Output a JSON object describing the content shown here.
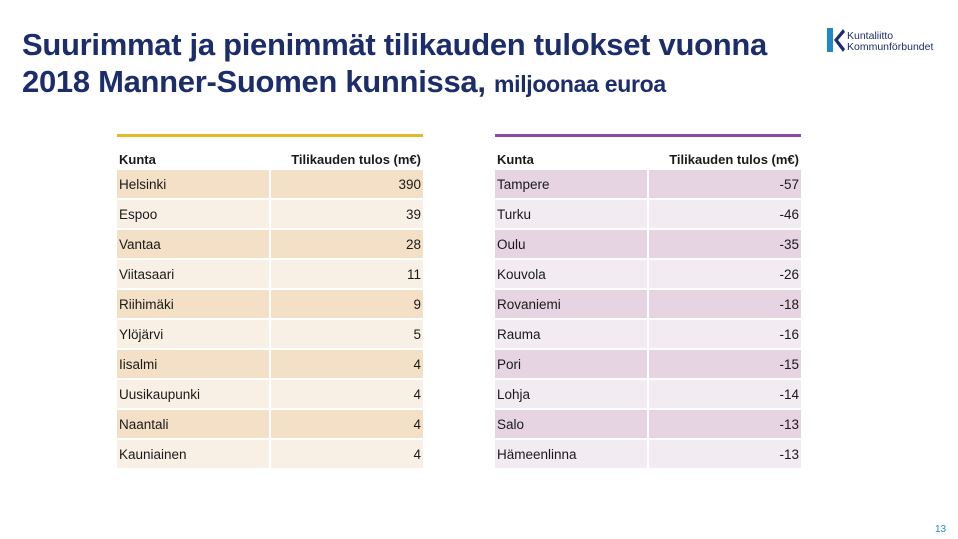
{
  "title": {
    "line1": "Suurimmat ja pienimmät tilikauden tulokset vuonna",
    "line2": "2018 Manner-Suomen kunnissa,",
    "unit": "miljoonaa euroa"
  },
  "logo": {
    "line1": "Kuntaliitto",
    "line2": "Kommunförbundet"
  },
  "left_table": {
    "header": {
      "kunta": "Kunta",
      "tulos": "Tilikauden tulos (m€)"
    },
    "rows": [
      {
        "kunta": "Helsinki",
        "tulos": "390"
      },
      {
        "kunta": "Espoo",
        "tulos": "39"
      },
      {
        "kunta": "Vantaa",
        "tulos": "28"
      },
      {
        "kunta": "Viitasaari",
        "tulos": "11"
      },
      {
        "kunta": "Riihimäki",
        "tulos": "9"
      },
      {
        "kunta": "Ylöjärvi",
        "tulos": "5"
      },
      {
        "kunta": "Iisalmi",
        "tulos": "4"
      },
      {
        "kunta": "Uusikaupunki",
        "tulos": "4"
      },
      {
        "kunta": "Naantali",
        "tulos": "4"
      },
      {
        "kunta": "Kauniainen",
        "tulos": "4"
      }
    ]
  },
  "right_table": {
    "header": {
      "kunta": "Kunta",
      "tulos": "Tilikauden tulos (m€)"
    },
    "rows": [
      {
        "kunta": "Tampere",
        "tulos": "-57"
      },
      {
        "kunta": "Turku",
        "tulos": "-46"
      },
      {
        "kunta": "Oulu",
        "tulos": "-35"
      },
      {
        "kunta": "Kouvola",
        "tulos": "-26"
      },
      {
        "kunta": "Rovaniemi",
        "tulos": "-18"
      },
      {
        "kunta": "Rauma",
        "tulos": "-16"
      },
      {
        "kunta": "Pori",
        "tulos": "-15"
      },
      {
        "kunta": "Lohja",
        "tulos": "-14"
      },
      {
        "kunta": "Salo",
        "tulos": "-13"
      },
      {
        "kunta": "Hämeenlinna",
        "tulos": "-13"
      }
    ]
  },
  "page_number": "13",
  "colors": {
    "title": "#1c2d6b",
    "left_accent": "#e5b92c",
    "right_accent": "#8e4aa6",
    "page_number": "#1e88c9"
  }
}
